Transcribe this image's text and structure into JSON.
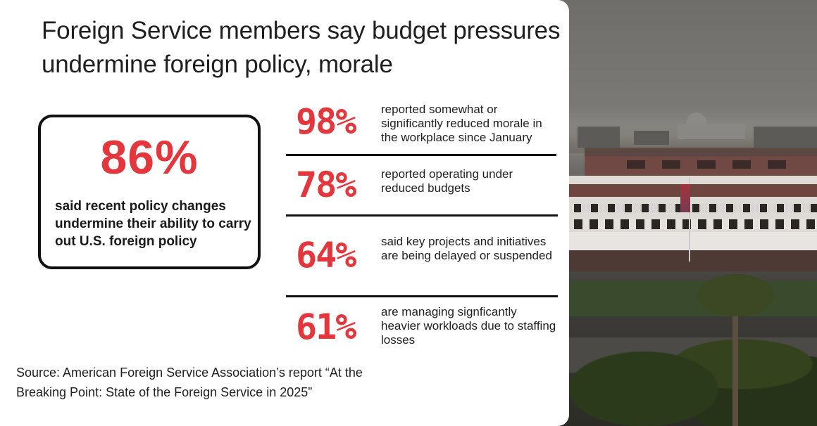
{
  "title": "Foreign Service members say budget pressures undermine foreign policy, morale",
  "highlight": {
    "value": "86%",
    "label": "said recent policy changes undermine their ability to carry out U.S. foreign policy"
  },
  "stats": [
    {
      "value": "98%",
      "label": "reported somewhat or significantly reduced morale in the workplace since January"
    },
    {
      "value": "78%",
      "label": "reported operating under reduced budgets"
    },
    {
      "value": "64%",
      "label": "said key projects and initiatives are being delayed or suspended"
    },
    {
      "value": "61%",
      "label": "are managing signficantly heavier workloads due to staffing losses"
    }
  ],
  "source": "Source: American Foreign Service Association’s report “At the Breaking Point: State of the Foreign Service in 2025”",
  "colors": {
    "accent": "#e3373d",
    "text": "#1f1f1f",
    "border": "#111111"
  }
}
